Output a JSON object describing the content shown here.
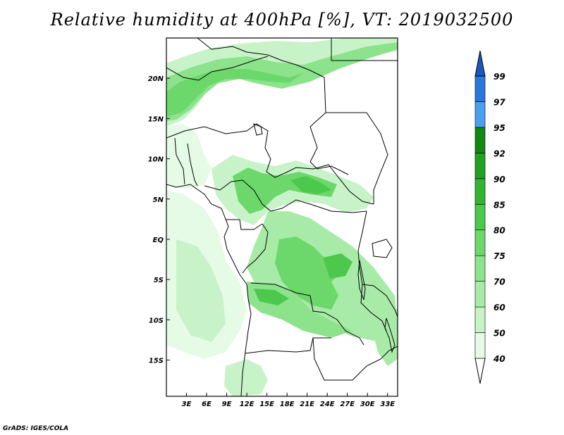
{
  "title": "Relative humidity at 400hPa [%], VT: 2019032500",
  "credit": "GrADS: IGES/COLA",
  "map": {
    "lon_range": [
      0,
      34.5
    ],
    "lat_range": [
      -19.5,
      25
    ],
    "lat_ticks": [
      {
        "value": 20,
        "label": "20N"
      },
      {
        "value": 15,
        "label": "15N"
      },
      {
        "value": 10,
        "label": "10N"
      },
      {
        "value": 5,
        "label": "5N"
      },
      {
        "value": 0,
        "label": "EQ"
      },
      {
        "value": -5,
        "label": "5S"
      },
      {
        "value": -10,
        "label": "10S"
      },
      {
        "value": -15,
        "label": "15S"
      }
    ],
    "lon_ticks": [
      {
        "value": 3,
        "label": "3E"
      },
      {
        "value": 6,
        "label": "6E"
      },
      {
        "value": 9,
        "label": "9E"
      },
      {
        "value": 12,
        "label": "12E"
      },
      {
        "value": 15,
        "label": "15E"
      },
      {
        "value": 18,
        "label": "18E"
      },
      {
        "value": 21,
        "label": "21E"
      },
      {
        "value": 24,
        "label": "24E"
      },
      {
        "value": 27,
        "label": "27E"
      },
      {
        "value": 30,
        "label": "30E"
      },
      {
        "value": 33,
        "label": "33E"
      }
    ]
  },
  "colorbar": {
    "levels": [
      "40",
      "50",
      "60",
      "70",
      "75",
      "80",
      "85",
      "90",
      "92",
      "95",
      "97",
      "99"
    ],
    "colors": [
      "#ffffff",
      "#e6fbe6",
      "#c8f3c8",
      "#a8eba8",
      "#8ce38c",
      "#6cd86c",
      "#4cc84c",
      "#33b533",
      "#22a022",
      "#118811",
      "#4a9ff0",
      "#2b78dc",
      "#1a58c0"
    ]
  }
}
